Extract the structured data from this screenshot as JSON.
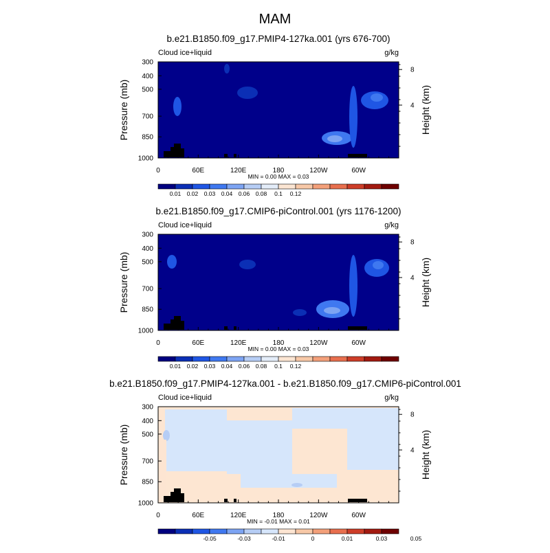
{
  "figure_title": "MAM",
  "chart_data": [
    {
      "type": "heatmap",
      "title": "b.e21.B1850.f09_g17.PMIP4-127ka.001 (yrs 676-700)",
      "left_label": "Cloud ice+liquid",
      "units": "g/kg",
      "ylabel": "Pressure (mb)",
      "ylabel_right": "Height (km)",
      "x_ticks": [
        "0",
        "60E",
        "120E",
        "180",
        "120W",
        "60W"
      ],
      "y_ticks": [
        "300",
        "400",
        "500",
        "700",
        "850",
        "1000"
      ],
      "y_right_ticks": [
        "8",
        "4"
      ],
      "minmax_text": "MIN =   0.00  MAX =    0.03",
      "colorbar_labels": [
        "0.01",
        "0.02",
        "0.03",
        "0.04",
        "0.06",
        "0.08",
        "0.1",
        "0.12"
      ],
      "colorbar_colors": [
        "#00007f",
        "#0b2fb5",
        "#1f56e4",
        "#3f78f0",
        "#7da4f3",
        "#b6cdf5",
        "#e3ecf8",
        "#fbe5d2",
        "#f7c8a7",
        "#f3a07a",
        "#e86f4e",
        "#cd3d28",
        "#a21a10",
        "#6e0000"
      ],
      "background_color": "#00008a"
    },
    {
      "type": "heatmap",
      "title": "b.e21.B1850.f09_g17.CMIP6-piControl.001 (yrs 1176-1200)",
      "left_label": "Cloud ice+liquid",
      "units": "g/kg",
      "ylabel": "Pressure (mb)",
      "ylabel_right": "Height (km)",
      "x_ticks": [
        "0",
        "60E",
        "120E",
        "180",
        "120W",
        "60W"
      ],
      "y_ticks": [
        "300",
        "400",
        "500",
        "700",
        "850",
        "1000"
      ],
      "y_right_ticks": [
        "8",
        "4"
      ],
      "minmax_text": "MIN =   0.00  MAX =    0.03",
      "colorbar_labels": [
        "0.01",
        "0.02",
        "0.03",
        "0.04",
        "0.06",
        "0.08",
        "0.1",
        "0.12"
      ],
      "colorbar_colors": [
        "#00007f",
        "#0b2fb5",
        "#1f56e4",
        "#3f78f0",
        "#7da4f3",
        "#b6cdf5",
        "#e3ecf8",
        "#fbe5d2",
        "#f7c8a7",
        "#f3a07a",
        "#e86f4e",
        "#cd3d28",
        "#a21a10",
        "#6e0000"
      ],
      "background_color": "#00008a"
    },
    {
      "type": "heatmap",
      "title": "b.e21.B1850.f09_g17.PMIP4-127ka.001 - b.e21.B1850.f09_g17.CMIP6-piControl.001",
      "left_label": "Cloud ice+liquid",
      "units": "g/kg",
      "ylabel": "Pressure (mb)",
      "ylabel_right": "Height (km)",
      "x_ticks": [
        "0",
        "60E",
        "120E",
        "180",
        "120W",
        "60W"
      ],
      "y_ticks": [
        "300",
        "400",
        "500",
        "700",
        "850",
        "1000"
      ],
      "y_right_ticks": [
        "8",
        "4"
      ],
      "minmax_text": "MIN =  -0.01  MAX =    0.01",
      "colorbar_labels": [
        "-0.05",
        "-0.03",
        "-0.01",
        "0",
        "0.01",
        "0.03",
        "0.05"
      ],
      "colorbar_colors": [
        "#00007f",
        "#0b2fb5",
        "#1f56e4",
        "#3f78f0",
        "#7da4f3",
        "#b6cdf5",
        "#d6e6fb",
        "#fde5d2",
        "#f7c8a7",
        "#f3a07a",
        "#e86f4e",
        "#cd3d28",
        "#a21a10",
        "#6e0000"
      ],
      "background_color": "#fde6d2"
    }
  ]
}
